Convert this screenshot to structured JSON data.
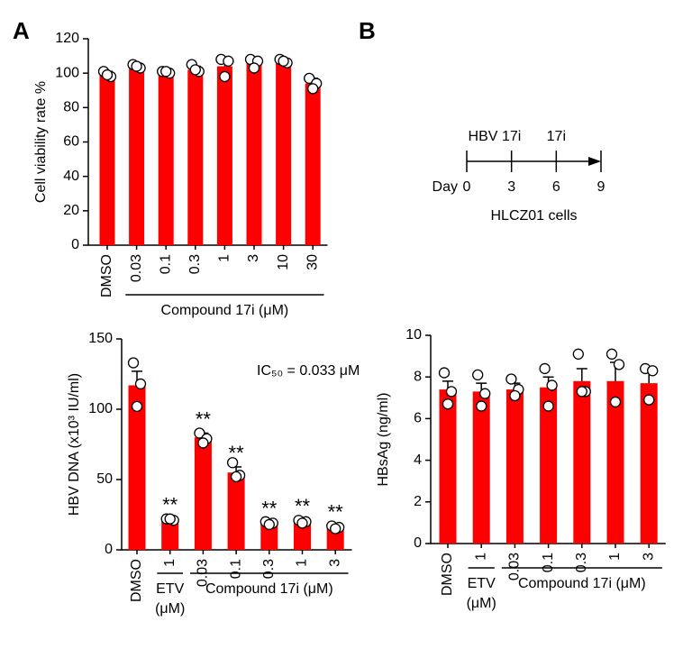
{
  "panel_labels": [
    "A",
    "B"
  ],
  "timeline": {
    "events": [
      {
        "label": "HBV",
        "day": 0
      },
      {
        "label": "17i",
        "day": 3
      },
      {
        "label": "17i",
        "day": 6
      }
    ],
    "day_label": "Day",
    "days": [
      0,
      3,
      6,
      9
    ],
    "caption": "HLCZ01 cells"
  },
  "chart_data": [
    {
      "type": "bar",
      "y_label": "Cell viability rate %",
      "color": "#ff0000",
      "categories": [
        "DMSO",
        "0.03",
        "0.1",
        "0.3",
        "1",
        "3",
        "10",
        "30"
      ],
      "category_groups": [
        null,
        "Compound 17i (μM)",
        "Compound 17i (μM)",
        "Compound 17i (μM)",
        "Compound 17i (μM)",
        "Compound 17i (μM)",
        "Compound 17i (μM)",
        "Compound 17i (μM)"
      ],
      "values": [
        100,
        103,
        100.5,
        102,
        104,
        106,
        107,
        94
      ],
      "errors": [
        1,
        1,
        1,
        2,
        4,
        2,
        1,
        3
      ],
      "points": [
        [
          101,
          98,
          99
        ],
        [
          105,
          103,
          104
        ],
        [
          101,
          100,
          101
        ],
        [
          105,
          101,
          102
        ],
        [
          108,
          107,
          98
        ],
        [
          108,
          107,
          103
        ],
        [
          108,
          106,
          107
        ],
        [
          97,
          94,
          91
        ]
      ],
      "ylim": [
        0,
        120
      ],
      "yticks": [
        0,
        20,
        40,
        60,
        80,
        100,
        120
      ]
    },
    {
      "type": "bar",
      "y_label": "HBV DNA (x10³ IU/ml)",
      "color": "#ff0000",
      "annotation": "IC₅₀ = 0.033 μM",
      "categories": [
        "DMSO",
        "1",
        "0.03",
        "0.1",
        "0.3",
        "1",
        "3"
      ],
      "category_groups": [
        null,
        "ETV\n(μM)",
        "Compound 17i (μM)",
        "Compound 17i (μM)",
        "Compound 17i (μM)",
        "Compound 17i (μM)",
        "Compound 17i (μM)"
      ],
      "values": [
        117,
        21,
        80,
        55,
        18.5,
        20,
        16
      ],
      "errors": [
        10,
        1,
        3,
        4,
        1,
        1,
        1
      ],
      "points": [
        [
          133,
          118,
          102
        ],
        [
          22,
          21,
          22
        ],
        [
          83,
          79,
          76
        ],
        [
          62,
          53,
          52
        ],
        [
          20,
          19,
          18
        ],
        [
          21,
          20,
          19
        ],
        [
          17,
          16,
          15
        ]
      ],
      "significance": [
        null,
        "**",
        "**",
        "**",
        "**",
        "**",
        "**"
      ],
      "ylim": [
        0,
        150
      ],
      "yticks": [
        0,
        50,
        100,
        150
      ]
    },
    {
      "type": "bar",
      "y_label": "HBsAg (ng/ml)",
      "color": "#ff0000",
      "categories": [
        "DMSO",
        "1",
        "0.03",
        "0.1",
        "0.3",
        "1",
        "3"
      ],
      "category_groups": [
        null,
        "ETV\n(μM)",
        "Compound 17i (μM)",
        "Compound 17i (μM)",
        "Compound 17i (μM)",
        "Compound 17i (μM)",
        "Compound 17i (μM)"
      ],
      "values": [
        7.4,
        7.3,
        7.4,
        7.5,
        7.8,
        7.8,
        7.7
      ],
      "errors": [
        0.4,
        0.4,
        0.3,
        0.5,
        0.6,
        0.9,
        0.5
      ],
      "points": [
        [
          8.2,
          7.3,
          6.7
        ],
        [
          8.1,
          7.2,
          6.6
        ],
        [
          7.9,
          7.4,
          7.1
        ],
        [
          8.4,
          7.6,
          6.6
        ],
        [
          9.1,
          7.3,
          7.3
        ],
        [
          9.1,
          8.6,
          6.8
        ],
        [
          8.4,
          8.3,
          6.9
        ]
      ],
      "ylim": [
        0,
        10
      ],
      "yticks": [
        0,
        2,
        4,
        6,
        8,
        10
      ]
    }
  ]
}
